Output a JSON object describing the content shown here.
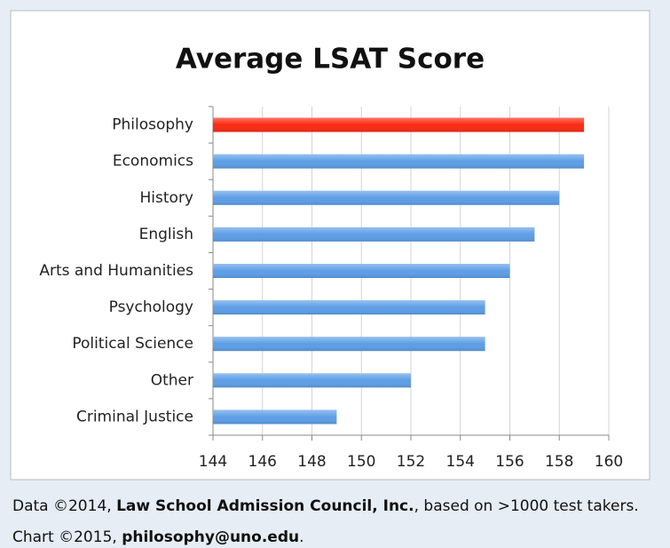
{
  "chart_data": {
    "type": "bar",
    "orientation": "horizontal",
    "title": "Average LSAT Score",
    "categories": [
      "Philosophy",
      "Economics",
      "History",
      "English",
      "Arts and Humanities",
      "Psychology",
      "Political Science",
      "Other",
      "Criminal Justice"
    ],
    "values": [
      159,
      159,
      158,
      157,
      156,
      155,
      155,
      152,
      149
    ],
    "colors": [
      "#fa2a12",
      "#5d9ee6",
      "#5d9ee6",
      "#5d9ee6",
      "#5d9ee6",
      "#5d9ee6",
      "#5d9ee6",
      "#5d9ee6",
      "#5d9ee6"
    ],
    "xlim": [
      144,
      160
    ],
    "xticks": [
      144,
      146,
      148,
      150,
      152,
      154,
      156,
      158,
      160
    ],
    "grid": true
  },
  "footer": [
    [
      {
        "text": "Data ©2014, ",
        "bold": false
      },
      {
        "text": "Law School Admission Council, Inc.",
        "bold": true
      },
      {
        "text": ", based on >1000 test takers.",
        "bold": false
      }
    ],
    [
      {
        "text": "Chart ©2015, ",
        "bold": false
      },
      {
        "text": "philosophy@uno.edu",
        "bold": true
      },
      {
        "text": ".",
        "bold": false
      }
    ]
  ]
}
